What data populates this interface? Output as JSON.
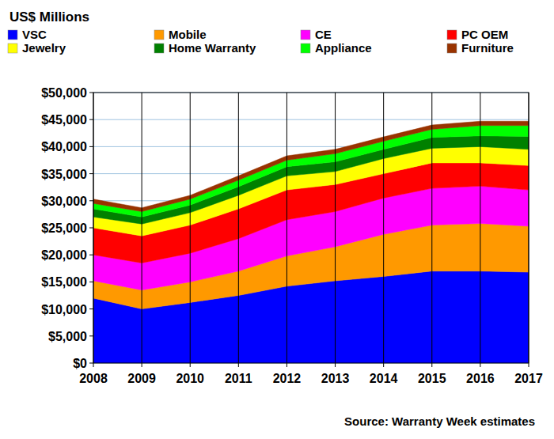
{
  "chart_data": {
    "type": "area",
    "title": "US$ Millions",
    "source": "Source: Warranty Week estimates",
    "stacked": true,
    "grid": true,
    "legend": "top",
    "categories": [
      "2008",
      "2009",
      "2010",
      "2011",
      "2012",
      "2013",
      "2014",
      "2015",
      "2016",
      "2017"
    ],
    "ylim": [
      0,
      50000
    ],
    "yticks": [
      {
        "value": 0,
        "label": "$0"
      },
      {
        "value": 5000,
        "label": "$5,000"
      },
      {
        "value": 10000,
        "label": "$10,000"
      },
      {
        "value": 15000,
        "label": "$15,000"
      },
      {
        "value": 20000,
        "label": "$20,000"
      },
      {
        "value": 25000,
        "label": "$25,000"
      },
      {
        "value": 30000,
        "label": "$30,000"
      },
      {
        "value": 35000,
        "label": "$35,000"
      },
      {
        "value": 40000,
        "label": "$40,000"
      },
      {
        "value": 45000,
        "label": "$45,000"
      },
      {
        "value": 50000,
        "label": "$50,000"
      }
    ],
    "series": [
      {
        "name": "VSC",
        "color": "#0000ff",
        "values": [
          12000,
          10000,
          11200,
          12500,
          14200,
          15200,
          16000,
          17000,
          17000,
          16800
        ]
      },
      {
        "name": "Mobile",
        "color": "#ff9900",
        "values": [
          3200,
          3500,
          3800,
          4500,
          5600,
          6300,
          7800,
          8500,
          8800,
          8500
        ]
      },
      {
        "name": "CE",
        "color": "#ff00ff",
        "values": [
          4800,
          5000,
          5300,
          6000,
          6700,
          6500,
          6700,
          6800,
          6900,
          6700
        ]
      },
      {
        "name": "PC OEM",
        "color": "#ff0000",
        "values": [
          5000,
          5000,
          5200,
          5500,
          5500,
          5000,
          4500,
          4700,
          4300,
          4500
        ]
      },
      {
        "name": "Jewelry",
        "color": "#ffff00",
        "values": [
          2000,
          2200,
          2300,
          2500,
          2600,
          2400,
          2800,
          2700,
          3000,
          3000
        ]
      },
      {
        "name": "Home Warranty",
        "color": "#008000",
        "values": [
          1500,
          1300,
          1400,
          1600,
          1700,
          1800,
          1700,
          2000,
          2000,
          2400
        ]
      },
      {
        "name": "Appliance",
        "color": "#00ff00",
        "values": [
          1000,
          1000,
          1100,
          1200,
          1200,
          1500,
          1500,
          1500,
          1900,
          2000
        ]
      },
      {
        "name": "Furniture",
        "color": "#993300",
        "values": [
          800,
          700,
          700,
          800,
          800,
          800,
          800,
          800,
          800,
          800
        ]
      }
    ]
  }
}
